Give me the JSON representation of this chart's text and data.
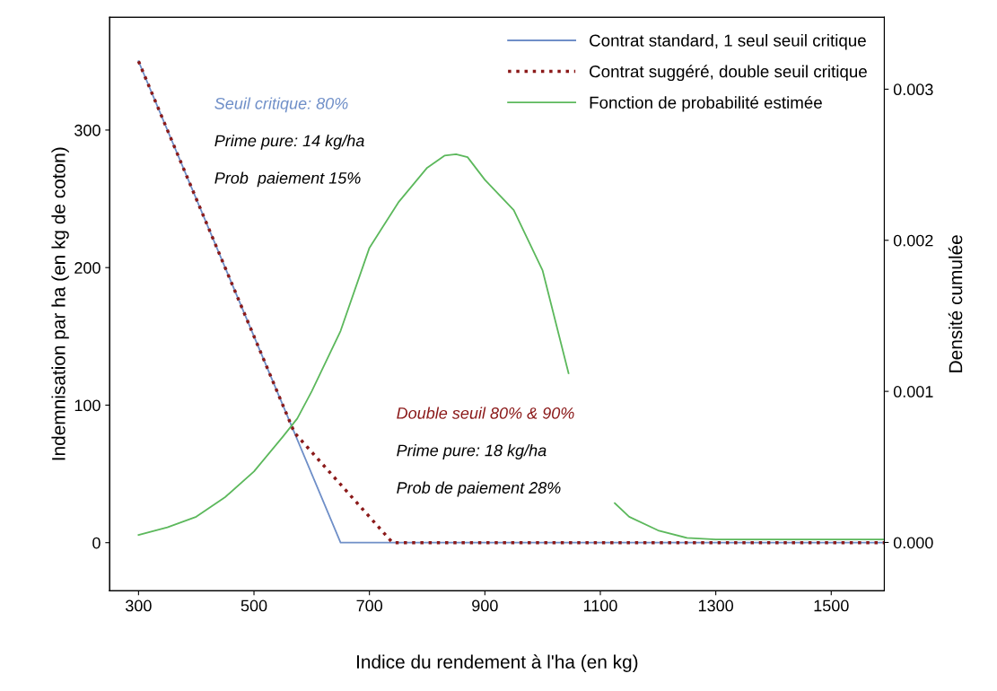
{
  "chart_data": {
    "type": "line",
    "xlabel": "Indice du rendement à l'ha (en kg)",
    "ylabel": "Indemnisation par ha (en kg de coton)",
    "y2label": "Densité cumulée",
    "xlim": [
      250,
      1592
    ],
    "xticks": [
      300,
      500,
      700,
      900,
      1100,
      1300,
      1500
    ],
    "ylim": [
      -35,
      382
    ],
    "yticks": [
      0,
      100,
      200,
      300
    ],
    "y2lim": [
      -0.00032,
      0.003476
    ],
    "y2ticks": [
      {
        "value": 0,
        "label": "0.000"
      },
      {
        "value": 0.001,
        "label": "0.001"
      },
      {
        "value": 0.002,
        "label": "0.002"
      },
      {
        "value": 0.003,
        "label": "0.003"
      }
    ],
    "grid": false,
    "legend": "top right",
    "series": [
      {
        "name": "Contrat standard, 1 seul seuil critique",
        "color": "#6f8fc8",
        "line_style": "solid",
        "x": [
          300,
          650,
          1592
        ],
        "values": [
          350,
          0,
          0
        ]
      },
      {
        "name": "Contrat suggéré, double seuil critique",
        "color": "#8b1a1a",
        "line_style": "dotted",
        "x": [
          300,
          570,
          740,
          1592
        ],
        "values": [
          350,
          80,
          0,
          0
        ]
      },
      {
        "name": "Fonction de probabilité estimée",
        "color": "#5cb85c",
        "line_style": "solid",
        "axis": "y2",
        "x": [
          300,
          350,
          400,
          450,
          500,
          550,
          575,
          600,
          650,
          700,
          750,
          800,
          830,
          850,
          870,
          900,
          950,
          1000,
          1045,
          1085,
          1125,
          1150,
          1200,
          1250,
          1300,
          1592
        ],
        "values": [
          5e-05,
          0.0001,
          0.00017,
          0.0003,
          0.00047,
          0.0007,
          0.00082,
          0.001,
          0.0014,
          0.00195,
          0.00225,
          0.00248,
          0.00256,
          0.00257,
          0.00255,
          0.0024,
          0.0022,
          0.0018,
          0.00112,
          null,
          0.00026,
          0.00017,
          8e-05,
          3e-05,
          2e-05,
          2e-05
        ]
      }
    ],
    "annotations": [
      "Seuil critique: 80%",
      "Prime pure: 14 kg/ha",
      "Prob  paiement 15%",
      "Double seuil 80% & 90%",
      "Prime pure: 18 kg/ha",
      "Prob de paiement 28%"
    ]
  }
}
